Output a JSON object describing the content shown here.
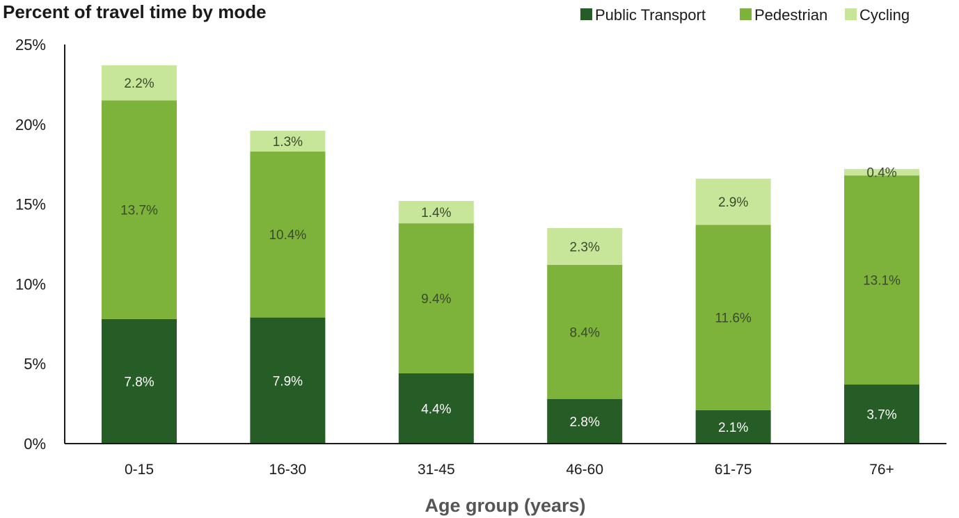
{
  "chart_data": {
    "type": "bar",
    "stacked": true,
    "title": "Percent of travel time by mode",
    "xlabel": "Age group (years)",
    "ylabel": "",
    "ylim": [
      0,
      25
    ],
    "yticks": [
      "0%",
      "5%",
      "10%",
      "15%",
      "20%",
      "25%"
    ],
    "ytick_values": [
      0,
      5,
      10,
      15,
      20,
      25
    ],
    "categories": [
      "0-15",
      "16-30",
      "31-45",
      "46-60",
      "61-75",
      "76+"
    ],
    "series": [
      {
        "name": "Public Transport",
        "color": "#265c25",
        "label_color": "#ffffff",
        "values": [
          7.8,
          7.9,
          4.4,
          2.8,
          2.1,
          3.7
        ],
        "labels": [
          "7.8%",
          "7.9%",
          "4.4%",
          "2.8%",
          "2.1%",
          "3.7%"
        ]
      },
      {
        "name": "Pedestrian",
        "color": "#7db33b",
        "label_color": "#3a4a2a",
        "values": [
          13.7,
          10.4,
          9.4,
          8.4,
          11.6,
          13.1
        ],
        "labels": [
          "13.7%",
          "10.4%",
          "9.4%",
          "8.4%",
          "11.6%",
          "13.1%"
        ]
      },
      {
        "name": "Cycling",
        "color": "#c8e69a",
        "label_color": "#3a4a2a",
        "values": [
          2.2,
          1.3,
          1.4,
          2.3,
          2.9,
          0.4
        ],
        "labels": [
          "2.2%",
          "1.3%",
          "1.4%",
          "2.3%",
          "2.9%",
          "0.4%"
        ]
      }
    ],
    "legend_position": "top-right",
    "grid": false
  }
}
